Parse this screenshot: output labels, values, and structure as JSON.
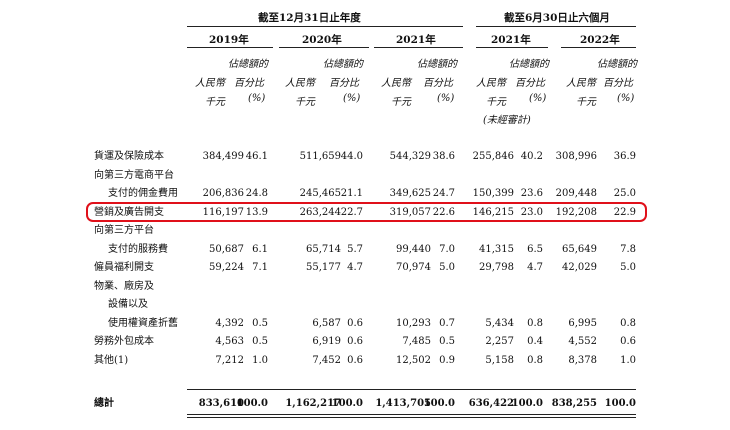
{
  "period_headers": {
    "annual": "截至12月31日止年度",
    "interim": "截至6月30日止六個月"
  },
  "year_headers": [
    "2019年",
    "2020年",
    "2021年",
    "2021年",
    "2022年"
  ],
  "sub_headers": {
    "share_label_1": "佔總額的",
    "share_label_2": "百分比",
    "currency_label_1": "人民幣",
    "currency_label_2": "千元",
    "percent_unit": "(%)",
    "unaudited": "(未經審計)"
  },
  "rows": [
    {
      "label_lines": [
        "貨運及保險成本"
      ],
      "values": [
        "384,499",
        "46.1",
        "511,659",
        "44.0",
        "544,329",
        "38.6",
        "255,846",
        "40.2",
        "308,996",
        "36.9"
      ]
    },
    {
      "label_lines": [
        "向第三方電商平台",
        "支付的佣金費用"
      ],
      "values": [
        "206,836",
        "24.8",
        "245,465",
        "21.1",
        "349,625",
        "24.7",
        "150,399",
        "23.6",
        "209,448",
        "25.0"
      ]
    },
    {
      "label_lines": [
        "營銷及廣告開支"
      ],
      "values": [
        "116,197",
        "13.9",
        "263,244",
        "22.7",
        "319,057",
        "22.6",
        "146,215",
        "23.0",
        "192,208",
        "22.9"
      ],
      "highlighted": true
    },
    {
      "label_lines": [
        "向第三方平台",
        "支付的服務費"
      ],
      "values": [
        "50,687",
        "6.1",
        "65,714",
        "5.7",
        "99,440",
        "7.0",
        "41,315",
        "6.5",
        "65,649",
        "7.8"
      ]
    },
    {
      "label_lines": [
        "僱員福利開支"
      ],
      "values": [
        "59,224",
        "7.1",
        "55,177",
        "4.7",
        "70,974",
        "5.0",
        "29,798",
        "4.7",
        "42,029",
        "5.0"
      ]
    },
    {
      "label_lines": [
        "物業、廠房及",
        "設備以及",
        "使用權資產折舊"
      ],
      "values": [
        "4,392",
        "0.5",
        "6,587",
        "0.6",
        "10,293",
        "0.7",
        "5,434",
        "0.8",
        "6,995",
        "0.8"
      ]
    },
    {
      "label_lines": [
        "勞務外包成本"
      ],
      "values": [
        "4,563",
        "0.5",
        "6,919",
        "0.6",
        "7,485",
        "0.5",
        "2,257",
        "0.4",
        "4,552",
        "0.6"
      ]
    },
    {
      "label_lines": [
        "其他(1)"
      ],
      "values": [
        "7,212",
        "1.0",
        "7,452",
        "0.6",
        "12,502",
        "0.9",
        "5,158",
        "0.8",
        "8,378",
        "1.0"
      ]
    }
  ],
  "total": {
    "label": "總計",
    "values": [
      "833,610",
      "100.0",
      "1,162,217",
      "100.0",
      "1,413,705",
      "100.0",
      "636,422",
      "100.0",
      "838,255",
      "100.0"
    ]
  },
  "highlight_color": "#e0101a"
}
